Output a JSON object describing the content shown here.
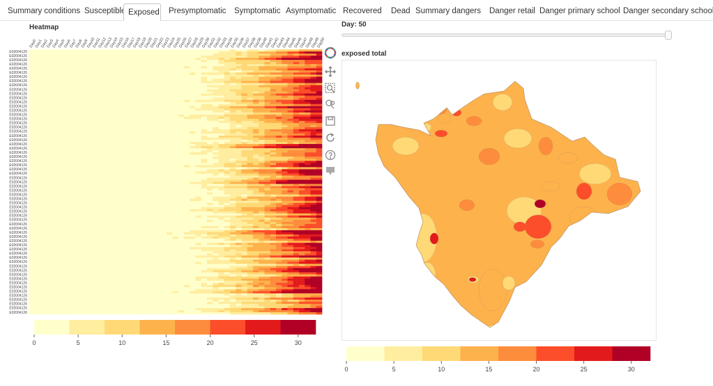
{
  "tabs": [
    {
      "label": "Summary conditions",
      "active": false
    },
    {
      "label": "Susceptible",
      "active": false
    },
    {
      "label": "Exposed",
      "active": true
    },
    {
      "label": "Presymptomatic",
      "active": false
    },
    {
      "label": "Symptomatic",
      "active": false
    },
    {
      "label": "Asymptomatic",
      "active": false
    },
    {
      "label": "Recovered",
      "active": false
    },
    {
      "label": "Dead",
      "active": false
    },
    {
      "label": "Summary dangers",
      "active": false
    },
    {
      "label": "Danger retail",
      "active": false
    },
    {
      "label": "Danger primary school",
      "active": false
    },
    {
      "label": "Danger secondary school",
      "active": false
    }
  ],
  "heatmap": {
    "title": "Heatmap",
    "day_labels": [
      "Day0",
      "Day1",
      "Day2",
      "Day3",
      "Day4",
      "Day5",
      "Day6",
      "Day7",
      "Day8",
      "Day9",
      "Day10",
      "Day11",
      "Day12",
      "Day13",
      "Day14",
      "Day15",
      "Day16",
      "Day17",
      "Day18",
      "Day19",
      "Day20",
      "Day21",
      "Day22",
      "Day23",
      "Day24",
      "Day25",
      "Day26",
      "Day27",
      "Day28",
      "Day29",
      "Day30",
      "Day31",
      "Day32",
      "Day33",
      "Day34",
      "Day35",
      "Day36",
      "Day37",
      "Day38",
      "Day39",
      "Day40",
      "Day41",
      "Day42",
      "Day43",
      "Day44",
      "Day45",
      "Day46",
      "Day47",
      "Day48",
      "Day49",
      "Day50"
    ],
    "visible_row_label": "E02004126"
  },
  "colorbar": {
    "colors": [
      "#ffffcc",
      "#ffeda0",
      "#fed976",
      "#feb24c",
      "#fd8d3c",
      "#fc4e2a",
      "#e31a1c",
      "#b10026"
    ],
    "ticks": [
      "0",
      "5",
      "10",
      "15",
      "20",
      "25",
      "30"
    ],
    "max": 32
  },
  "slider": {
    "label": "Day: 50",
    "value": 50,
    "max": 50
  },
  "map": {
    "title": "exposed total"
  },
  "toolbar": {
    "tools": [
      {
        "name": "bokeh-logo-icon"
      },
      {
        "name": "pan-icon"
      },
      {
        "name": "box-zoom-icon"
      },
      {
        "name": "wheel-zoom-icon"
      },
      {
        "name": "save-icon"
      },
      {
        "name": "reset-icon"
      },
      {
        "name": "help-icon"
      },
      {
        "name": "hover-icon"
      }
    ]
  }
}
